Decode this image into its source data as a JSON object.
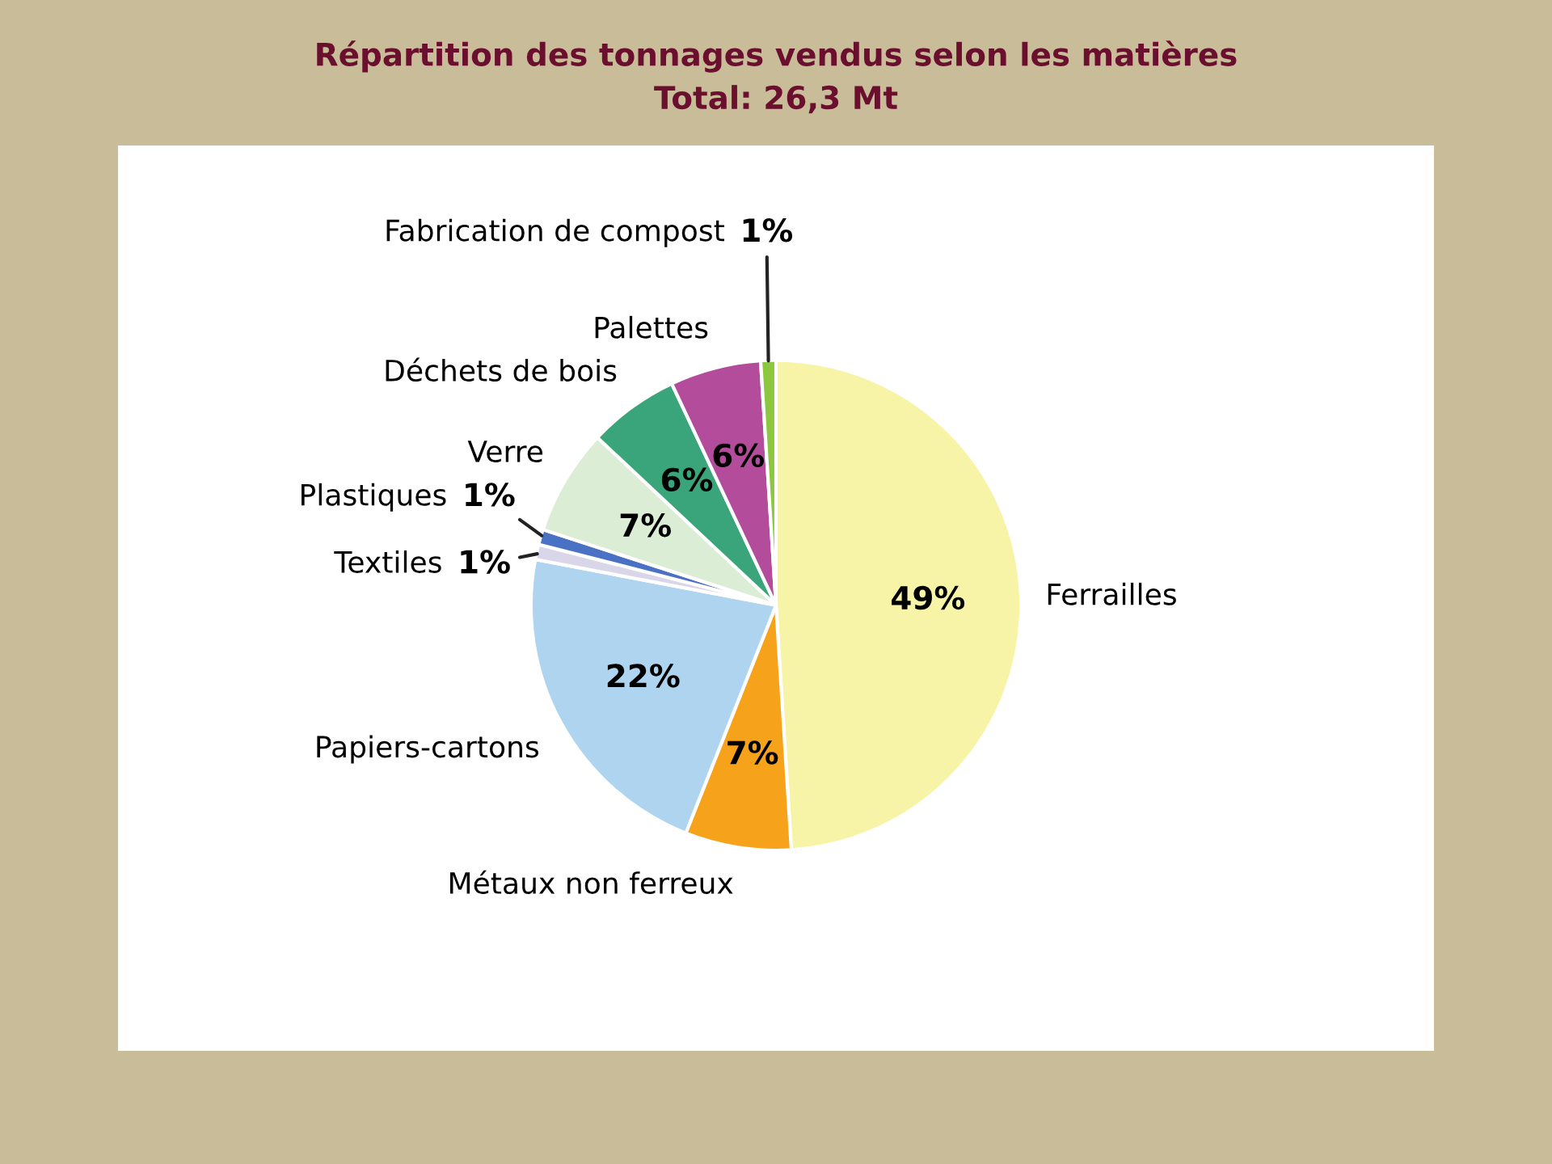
{
  "chart_data": {
    "type": "pie",
    "title": "Répartition des tonnages vendus selon les matières",
    "subtitle": "Total: 26,3 Mt",
    "categories": [
      "Ferrailles",
      "Métaux non ferreux",
      "Papiers-cartons",
      "Textiles",
      "Plastiques",
      "Verre",
      "Déchets de bois",
      "Palettes",
      "Fabrication de compost"
    ],
    "values": [
      49,
      7,
      22,
      1,
      1,
      7,
      6,
      6,
      1
    ],
    "colors": [
      "#f7f4a8",
      "#f7a21b",
      "#aed4f0",
      "#d9d6ea",
      "#4a72c4",
      "#dcedd5",
      "#3aa57a",
      "#b24c9b",
      "#8dc63f"
    ],
    "value_labels": [
      "49%",
      "7%",
      "22%",
      "1%",
      "1%",
      "7%",
      "6%",
      "6%",
      "1%"
    ],
    "legend": false
  }
}
